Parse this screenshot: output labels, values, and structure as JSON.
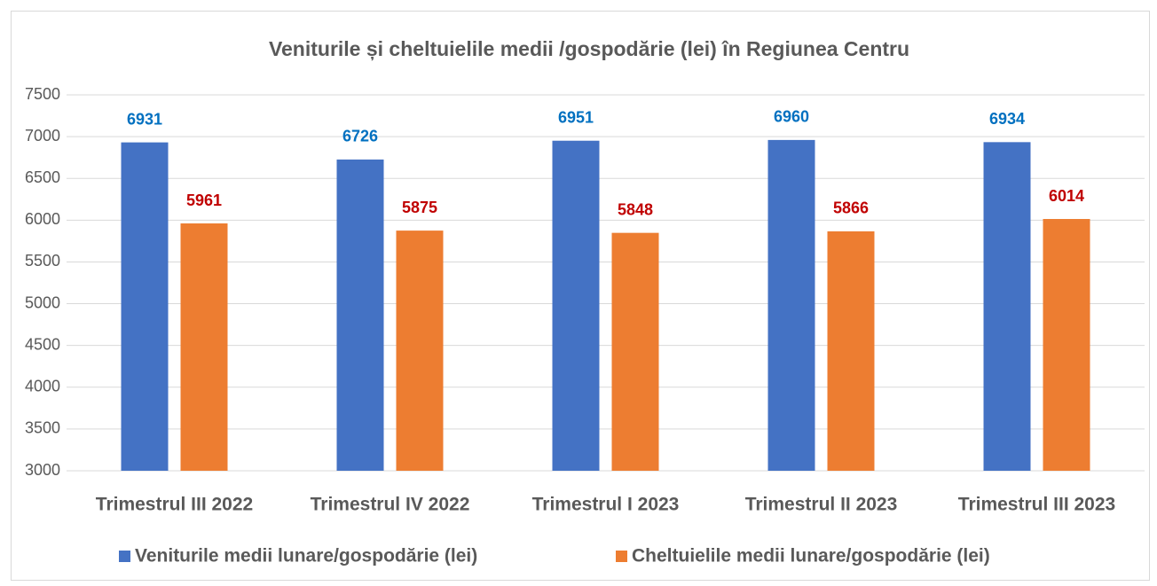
{
  "chart_data": {
    "type": "bar",
    "title": "Veniturile și cheltuielile medii /gospodărie (lei) în Regiunea Centru",
    "categories": [
      "Trimestrul III 2022",
      "Trimestrul IV 2022",
      "Trimestrul I 2023",
      "Trimestrul II 2023",
      "Trimestrul III 2023"
    ],
    "series": [
      {
        "name": "Veniturile medii lunare/gospodărie (lei)",
        "color": "#4472c4",
        "label_color": "#0070c0",
        "values": [
          6931,
          6726,
          6951,
          6960,
          6934
        ]
      },
      {
        "name": "Cheltuielile medii lunare/gospodărie (lei)",
        "color": "#ed7d31",
        "label_color": "#c00000",
        "values": [
          5961,
          5875,
          5848,
          5866,
          6014
        ]
      }
    ],
    "ylim": [
      3000,
      7500
    ],
    "yticks": [
      3000,
      3500,
      4000,
      4500,
      5000,
      5500,
      6000,
      6500,
      7000,
      7500
    ],
    "grid": true,
    "legend": "bottom"
  }
}
